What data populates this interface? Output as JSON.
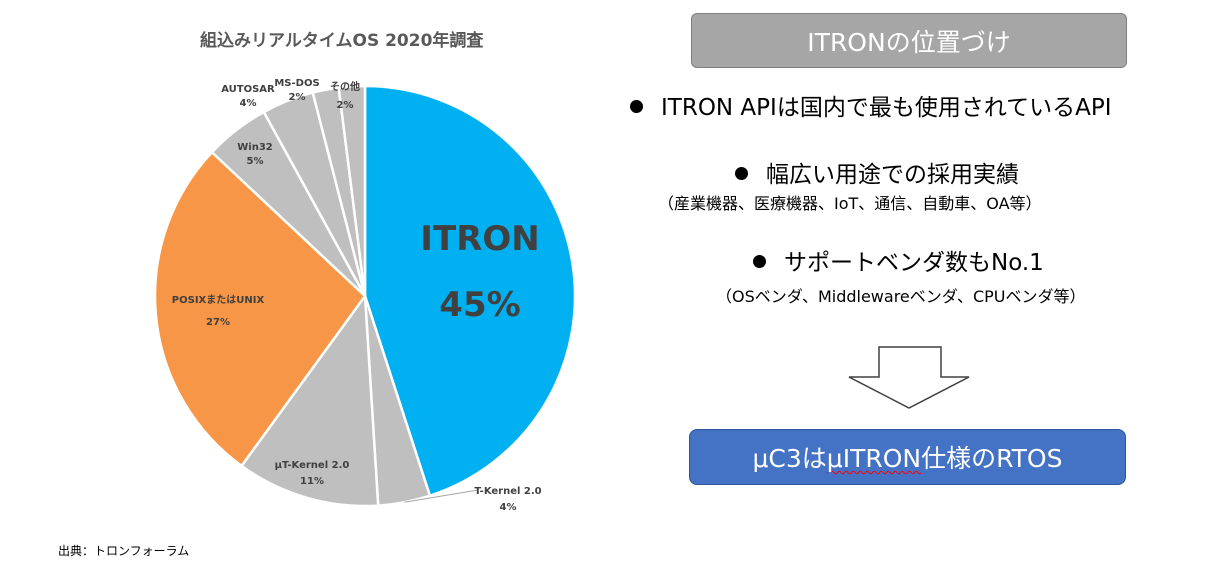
{
  "chart_data": {
    "type": "pie",
    "title": "組込みリアルタイムOS 2020年調査",
    "slices": [
      {
        "name": "ITRON",
        "value": 45,
        "label": "45%",
        "color": "#00b0f0"
      },
      {
        "name": "T-Kernel 2.0",
        "value": 4,
        "label": "4%",
        "color": "#bfbfbf"
      },
      {
        "name": "μT-Kernel 2.0",
        "value": 11,
        "label": "11%",
        "color": "#bfbfbf"
      },
      {
        "name": "POSIXまたはUNIX",
        "value": 27,
        "label": "27%",
        "color": "#f79646"
      },
      {
        "name": "Win32",
        "value": 5,
        "label": "5%",
        "color": "#bfbfbf"
      },
      {
        "name": "AUTOSAR",
        "value": 4,
        "label": "4%",
        "color": "#bfbfbf"
      },
      {
        "name": "MS-DOS",
        "value": 2,
        "label": "2%",
        "color": "#bfbfbf"
      },
      {
        "name": "その他",
        "value": 2,
        "label": "2%",
        "color": "#bfbfbf"
      }
    ]
  },
  "source": "出典：トロンフォーラム",
  "heading": "ITRONの位置づけ",
  "bullets": [
    {
      "text": "ITRON APIは国内で最も使用されているAPI"
    },
    {
      "text": "幅広い用途での採用実績",
      "sub": "（産業機器、医療機器、IoT、通信、自動車、OA等）"
    },
    {
      "text": "サポートベンダ数もNo.1",
      "sub": "（OSベンダ、Middlewareベンダ、CPUベンダ等）"
    }
  ],
  "result": {
    "prefix": "μC3は",
    "wavy": "μITRON",
    "suffix": "仕様のRTOS"
  }
}
